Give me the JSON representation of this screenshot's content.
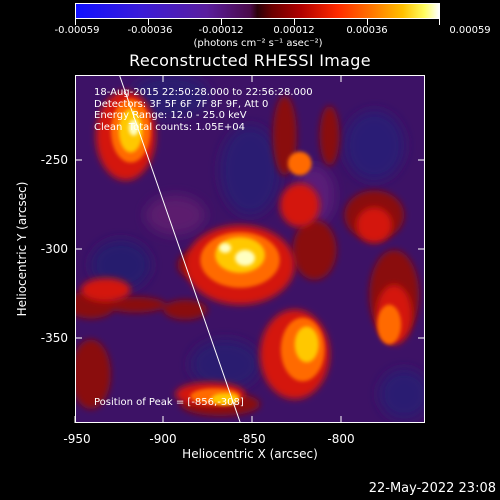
{
  "colorbar": {
    "ticks": [
      "-0.00059",
      "-0.00036",
      "-0.00012",
      "0.00012",
      "0.00036",
      "0.00059"
    ],
    "unit_label": "(photons cm⁻² s⁻¹ asec⁻²)"
  },
  "title": "Reconstructed RHESSI Image",
  "info": {
    "line1": "18-Aug-2015 22:50:28.000 to 22:56:28.000",
    "line2": "Detectors: 3F 5F 6F 7F 8F 9F, Att 0",
    "line3": "Energy Range: 12.0 - 25.0 keV",
    "line4": "Clean  Total counts: 1.05E+04",
    "peak": "Position of Peak = [-856,-308]"
  },
  "axes": {
    "xlabel": "Heliocentric X (arcsec)",
    "ylabel": "Heliocentric Y (arcsec)",
    "xticks": [
      "-950",
      "-900",
      "-850",
      "-800"
    ],
    "yticks": [
      "-250",
      "-300",
      "-350"
    ]
  },
  "timestamp": "22-May-2022 23:08",
  "colors": {
    "background": "#000000",
    "text": "#ffffff",
    "colormap": [
      "#1010ff",
      "#5a1e9e",
      "#2a0008",
      "#b00000",
      "#ff7a00",
      "#ffc000",
      "#ffffff"
    ]
  }
}
